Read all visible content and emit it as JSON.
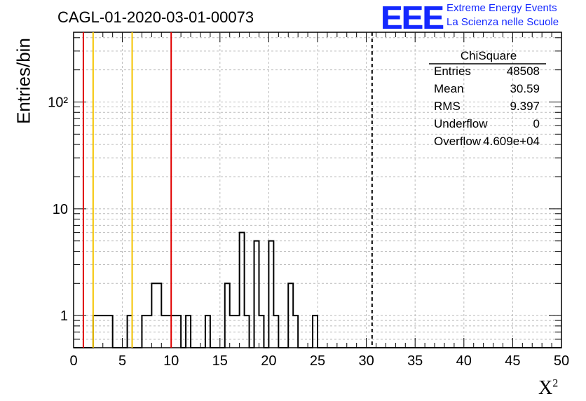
{
  "title": "CAGL-01-2020-03-01-00073",
  "logo": {
    "mark": "EEE",
    "line1": "Extreme Energy Events",
    "line2": "La Scienza nelle Scuole",
    "color": "#1428ff"
  },
  "ylabel": "Entries/bin",
  "xlabel": {
    "base": "X",
    "sup": "2"
  },
  "stats": {
    "header": "ChiSquare",
    "rows": [
      {
        "key": "Entries",
        "value": "48508"
      },
      {
        "key": "Mean",
        "value": "30.59"
      },
      {
        "key": "RMS",
        "value": "9.397"
      },
      {
        "key": "Underflow",
        "value": "0"
      },
      {
        "key": "Overflow",
        "value": "4.609e+04"
      }
    ]
  },
  "chart_data": {
    "type": "histogram",
    "scale": "log",
    "xlim": [
      0,
      50
    ],
    "ylim": [
      0.5,
      450
    ],
    "bin_width": 0.5,
    "x_ticks": [
      0,
      5,
      10,
      15,
      20,
      25,
      30,
      35,
      40,
      45,
      50
    ],
    "y_ticks": [
      {
        "value": 1,
        "label": "1"
      },
      {
        "value": 10,
        "label": "10"
      },
      {
        "value": 100,
        "label": "10²"
      }
    ],
    "grid": true,
    "vlines": [
      {
        "x": 1,
        "color": "#e00000",
        "style": "solid"
      },
      {
        "x": 2,
        "color": "#f5c400",
        "style": "solid"
      },
      {
        "x": 6,
        "color": "#f5c400",
        "style": "solid"
      },
      {
        "x": 10,
        "color": "#e00000",
        "style": "solid"
      },
      {
        "x": 30.59,
        "color": "#000000",
        "style": "dashed"
      }
    ],
    "counts": [
      0,
      0,
      0,
      0,
      1,
      1,
      1,
      1,
      0,
      0,
      0,
      1,
      0,
      0,
      1,
      1,
      2,
      2,
      1,
      1,
      1,
      1,
      0,
      1,
      0,
      0,
      0,
      1,
      0,
      0,
      0,
      2,
      1,
      1,
      6,
      1,
      0,
      5,
      1,
      0,
      5,
      1,
      0,
      0,
      2,
      1,
      0,
      0,
      0,
      1,
      0,
      0,
      0,
      0,
      0,
      0,
      0,
      0,
      0,
      0,
      0,
      0,
      0,
      0,
      0,
      0,
      0,
      0,
      0,
      0,
      0,
      0,
      0,
      0,
      0,
      0,
      0,
      0,
      0,
      0,
      0,
      0,
      0,
      0,
      0,
      0,
      0,
      0,
      0,
      0,
      0,
      0,
      0,
      0,
      0,
      0,
      0,
      0,
      0,
      0
    ]
  }
}
